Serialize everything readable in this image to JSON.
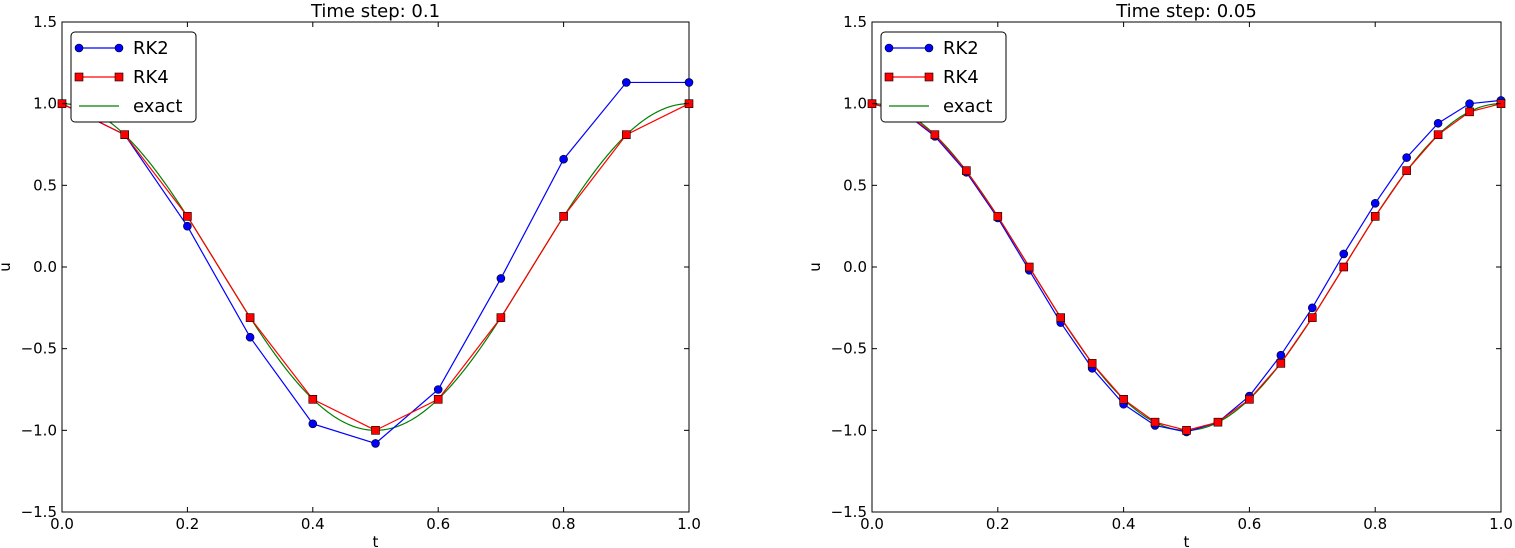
{
  "chart_data": [
    {
      "type": "line",
      "title": "Time step: 0.1",
      "xlabel": "t",
      "ylabel": "u",
      "xlim": [
        0.0,
        1.0
      ],
      "ylim": [
        -1.5,
        1.5
      ],
      "xticks": [
        0.0,
        0.2,
        0.4,
        0.6,
        0.8,
        1.0
      ],
      "xtick_labels": [
        "0.0",
        "0.2",
        "0.4",
        "0.6",
        "0.8",
        "1.0"
      ],
      "yticks": [
        -1.5,
        -1.0,
        -0.5,
        0.0,
        0.5,
        1.0,
        1.5
      ],
      "ytick_labels": [
        "−1.5",
        "−1.0",
        "−0.5",
        "0.0",
        "0.5",
        "1.0",
        "1.5"
      ],
      "grid": false,
      "legend_position": "top-left",
      "series": [
        {
          "name": "RK2",
          "color": "#0000ff",
          "marker": "circle",
          "x": [
            0.0,
            0.1,
            0.2,
            0.3,
            0.4,
            0.5,
            0.6,
            0.7,
            0.8,
            0.9,
            1.0
          ],
          "y": [
            1.0,
            0.81,
            0.25,
            -0.43,
            -0.96,
            -1.08,
            -0.75,
            -0.07,
            0.66,
            1.13,
            1.13
          ]
        },
        {
          "name": "RK4",
          "color": "#ff0000",
          "marker": "square",
          "x": [
            0.0,
            0.1,
            0.2,
            0.3,
            0.4,
            0.5,
            0.6,
            0.7,
            0.8,
            0.9,
            1.0
          ],
          "y": [
            1.0,
            0.81,
            0.31,
            -0.31,
            -0.81,
            -1.0,
            -0.81,
            -0.31,
            0.31,
            0.81,
            1.0
          ]
        },
        {
          "name": "exact",
          "color": "#008000",
          "marker": "none",
          "function": "cos(2*pi*t)"
        }
      ]
    },
    {
      "type": "line",
      "title": "Time step: 0.05",
      "xlabel": "t",
      "ylabel": "u",
      "xlim": [
        0.0,
        1.0
      ],
      "ylim": [
        -1.5,
        1.5
      ],
      "xticks": [
        0.0,
        0.2,
        0.4,
        0.6,
        0.8,
        1.0
      ],
      "xtick_labels": [
        "0.0",
        "0.2",
        "0.4",
        "0.6",
        "0.8",
        "1.0"
      ],
      "yticks": [
        -1.5,
        -1.0,
        -0.5,
        0.0,
        0.5,
        1.0,
        1.5
      ],
      "ytick_labels": [
        "−1.5",
        "−1.0",
        "−0.5",
        "0.0",
        "0.5",
        "1.0",
        "1.5"
      ],
      "grid": false,
      "legend_position": "top-left",
      "series": [
        {
          "name": "RK2",
          "color": "#0000ff",
          "marker": "circle",
          "x": [
            0.0,
            0.05,
            0.1,
            0.15,
            0.2,
            0.25,
            0.3,
            0.35,
            0.4,
            0.45,
            0.5,
            0.55,
            0.6,
            0.65,
            0.7,
            0.75,
            0.8,
            0.85,
            0.9,
            0.95,
            1.0
          ],
          "y": [
            1.0,
            0.95,
            0.8,
            0.58,
            0.3,
            -0.02,
            -0.34,
            -0.62,
            -0.84,
            -0.97,
            -1.01,
            -0.95,
            -0.79,
            -0.54,
            -0.25,
            0.08,
            0.39,
            0.67,
            0.88,
            1.0,
            1.02
          ]
        },
        {
          "name": "RK4",
          "color": "#ff0000",
          "marker": "square",
          "x": [
            0.0,
            0.05,
            0.1,
            0.15,
            0.2,
            0.25,
            0.3,
            0.35,
            0.4,
            0.45,
            0.5,
            0.55,
            0.6,
            0.65,
            0.7,
            0.75,
            0.8,
            0.85,
            0.9,
            0.95,
            1.0
          ],
          "y": [
            1.0,
            0.95,
            0.81,
            0.59,
            0.31,
            0.0,
            -0.31,
            -0.59,
            -0.81,
            -0.95,
            -1.0,
            -0.95,
            -0.81,
            -0.59,
            -0.31,
            0.0,
            0.31,
            0.59,
            0.81,
            0.95,
            1.0
          ]
        },
        {
          "name": "exact",
          "color": "#008000",
          "marker": "none",
          "function": "cos(2*pi*t)"
        }
      ]
    }
  ]
}
